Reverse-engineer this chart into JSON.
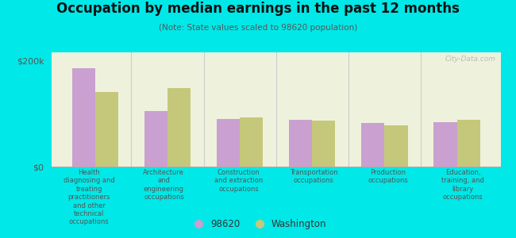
{
  "title": "Occupation by median earnings in the past 12 months",
  "subtitle": "(Note: State values scaled to 98620 population)",
  "background_color": "#00e8e8",
  "plot_bg_color": "#eef2dc",
  "categories": [
    "Health\ndiagnosing and\ntreating\npractitioners\nand other\ntechnical\noccupations",
    "Architecture\nand\nengineering\noccupations",
    "Construction\nand extraction\noccupations",
    "Transportation\noccupations",
    "Production\noccupations",
    "Education,\ntraining, and\nlibrary\noccupations"
  ],
  "values_98620": [
    185000,
    105000,
    90000,
    88000,
    82000,
    83000
  ],
  "values_washington": [
    140000,
    148000,
    92000,
    86000,
    78000,
    88000
  ],
  "color_98620": "#c9a0d0",
  "color_washington": "#c5c87a",
  "ylim": [
    0,
    215000
  ],
  "yticks": [
    0,
    200000
  ],
  "ytick_labels": [
    "$0",
    "$200k"
  ],
  "legend_98620": "98620",
  "legend_washington": "Washington",
  "watermark": "City-Data.com"
}
